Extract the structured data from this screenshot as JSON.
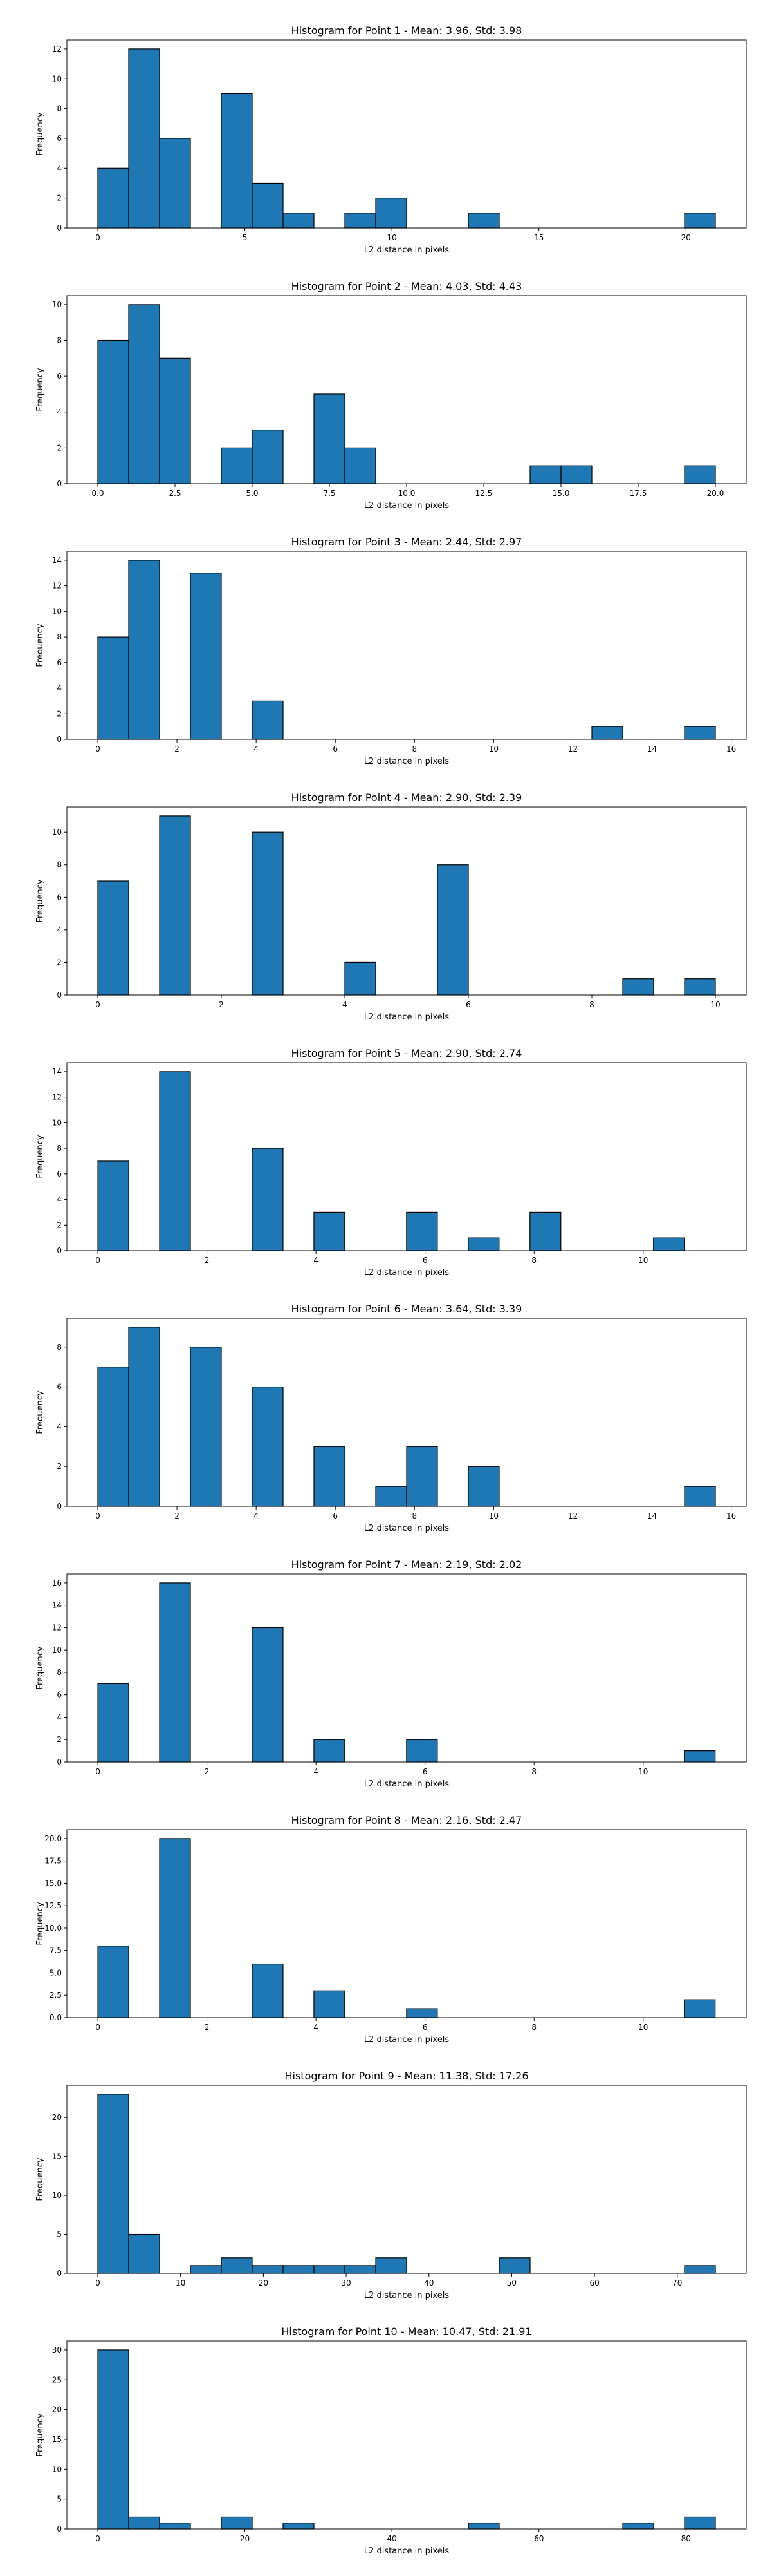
{
  "style": {
    "bar_color": "#1f77b4",
    "edge_color": "#000000",
    "background": "#ffffff"
  },
  "chart_data": [
    {
      "type": "bar",
      "title": "Histogram for Point 1 - Mean: 3.96, Std: 3.98",
      "xlabel": "L2 distance in pixels",
      "ylabel": "Frequency",
      "xlim": [
        -1.05,
        22.05
      ],
      "ylim": [
        0,
        12.6
      ],
      "xticks": [
        0,
        5,
        10,
        15,
        20
      ],
      "xtick_labels": [
        "0",
        "5",
        "10",
        "15",
        "20"
      ],
      "yticks": [
        0,
        2,
        4,
        6,
        8,
        10,
        12
      ],
      "ytick_labels": [
        "0",
        "2",
        "4",
        "6",
        "8",
        "10",
        "12"
      ],
      "bin_edges": [
        0,
        1.05,
        2.1,
        3.15,
        4.2,
        5.25,
        6.3,
        7.35,
        8.4,
        9.45,
        10.5,
        11.55,
        12.6,
        13.65,
        14.7,
        15.75,
        16.8,
        17.85,
        18.9,
        19.95,
        21
      ],
      "values": [
        4,
        12,
        6,
        0,
        9,
        3,
        1,
        0,
        1,
        2,
        0,
        0,
        1,
        0,
        0,
        0,
        0,
        0,
        0,
        1
      ],
      "grid": false
    },
    {
      "type": "bar",
      "title": "Histogram for Point 2 - Mean: 4.03, Std: 4.43",
      "xlabel": "L2 distance in pixels",
      "ylabel": "Frequency",
      "xlim": [
        -1.0,
        21.0
      ],
      "ylim": [
        0,
        10.5
      ],
      "xticks": [
        0,
        2.5,
        5,
        7.5,
        10,
        12.5,
        15,
        17.5,
        20
      ],
      "xtick_labels": [
        "0.0",
        "2.5",
        "5.0",
        "7.5",
        "10.0",
        "12.5",
        "15.0",
        "17.5",
        "20.0"
      ],
      "yticks": [
        0,
        2,
        4,
        6,
        8,
        10
      ],
      "ytick_labels": [
        "0",
        "2",
        "4",
        "6",
        "8",
        "10"
      ],
      "bin_edges": [
        0,
        1,
        2,
        3,
        4,
        5,
        6,
        7,
        8,
        9,
        10,
        11,
        12,
        13,
        14,
        15,
        16,
        17,
        18,
        19,
        20
      ],
      "values": [
        8,
        10,
        7,
        0,
        2,
        3,
        0,
        5,
        2,
        0,
        0,
        0,
        0,
        0,
        1,
        1,
        0,
        0,
        0,
        1
      ],
      "grid": false
    },
    {
      "type": "bar",
      "title": "Histogram for Point 3 - Mean: 2.44, Std: 2.97",
      "xlabel": "L2 distance in pixels",
      "ylabel": "Frequency",
      "xlim": [
        -0.78,
        16.38
      ],
      "ylim": [
        0,
        14.7
      ],
      "xticks": [
        0,
        2,
        4,
        6,
        8,
        10,
        12,
        14,
        16
      ],
      "xtick_labels": [
        "0",
        "2",
        "4",
        "6",
        "8",
        "10",
        "12",
        "14",
        "16"
      ],
      "yticks": [
        0,
        2,
        4,
        6,
        8,
        10,
        12,
        14
      ],
      "ytick_labels": [
        "0",
        "2",
        "4",
        "6",
        "8",
        "10",
        "12",
        "14"
      ],
      "bin_edges": [
        0,
        0.78,
        1.56,
        2.34,
        3.12,
        3.9,
        4.68,
        5.46,
        6.24,
        7.02,
        7.8,
        8.58,
        9.36,
        10.14,
        10.92,
        11.7,
        12.48,
        13.26,
        14.04,
        14.82,
        15.6
      ],
      "values": [
        8,
        14,
        0,
        13,
        0,
        3,
        0,
        0,
        0,
        0,
        0,
        0,
        0,
        0,
        0,
        0,
        1,
        0,
        0,
        1
      ],
      "grid": false
    },
    {
      "type": "bar",
      "title": "Histogram for Point 4 - Mean: 2.90, Std: 2.39",
      "xlabel": "L2 distance in pixels",
      "ylabel": "Frequency",
      "xlim": [
        -0.5,
        10.5
      ],
      "ylim": [
        0,
        11.55
      ],
      "xticks": [
        0,
        2,
        4,
        6,
        8,
        10
      ],
      "xtick_labels": [
        "0",
        "2",
        "4",
        "6",
        "8",
        "10"
      ],
      "yticks": [
        0,
        2,
        4,
        6,
        8,
        10
      ],
      "ytick_labels": [
        "0",
        "2",
        "4",
        "6",
        "8",
        "10"
      ],
      "bin_edges": [
        0,
        0.5,
        1,
        1.5,
        2,
        2.5,
        3,
        3.5,
        4,
        4.5,
        5,
        5.5,
        6,
        6.5,
        7,
        7.5,
        8,
        8.5,
        9,
        9.5,
        10
      ],
      "values": [
        7,
        0,
        11,
        0,
        0,
        10,
        0,
        0,
        2,
        0,
        0,
        8,
        0,
        0,
        0,
        0,
        0,
        1,
        0,
        1
      ],
      "grid": false
    },
    {
      "type": "bar",
      "title": "Histogram for Point 5 - Mean: 2.90, Std: 2.74",
      "xlabel": "L2 distance in pixels",
      "ylabel": "Frequency",
      "xlim": [
        -0.567,
        11.89
      ],
      "ylim": [
        0,
        14.7
      ],
      "xticks": [
        0,
        2,
        4,
        6,
        8,
        10
      ],
      "xtick_labels": [
        "0",
        "2",
        "4",
        "6",
        "8",
        "10"
      ],
      "yticks": [
        0,
        2,
        4,
        6,
        8,
        10,
        12,
        14
      ],
      "ytick_labels": [
        "0",
        "2",
        "4",
        "6",
        "8",
        "10",
        "12",
        "14"
      ],
      "bin_edges": [
        0,
        0.566,
        1.132,
        1.698,
        2.264,
        2.83,
        3.396,
        3.962,
        4.528,
        5.094,
        5.66,
        6.226,
        6.792,
        7.358,
        7.924,
        8.49,
        9.056,
        9.622,
        10.188,
        10.754,
        11.32
      ],
      "values": [
        7,
        0,
        14,
        0,
        0,
        8,
        0,
        3,
        0,
        0,
        3,
        0,
        1,
        0,
        3,
        0,
        0,
        0,
        1,
        0
      ],
      "grid": false
    },
    {
      "type": "bar",
      "title": "Histogram for Point 6 - Mean: 3.64, Std: 3.39",
      "xlabel": "L2 distance in pixels",
      "ylabel": "Frequency",
      "xlim": [
        -0.78,
        16.38
      ],
      "ylim": [
        0,
        9.45
      ],
      "xticks": [
        0,
        2,
        4,
        6,
        8,
        10,
        12,
        14,
        16
      ],
      "xtick_labels": [
        "0",
        "2",
        "4",
        "6",
        "8",
        "10",
        "12",
        "14",
        "16"
      ],
      "yticks": [
        0,
        2,
        4,
        6,
        8
      ],
      "ytick_labels": [
        "0",
        "2",
        "4",
        "6",
        "8"
      ],
      "bin_edges": [
        0,
        0.78,
        1.56,
        2.34,
        3.12,
        3.9,
        4.68,
        5.46,
        6.24,
        7.02,
        7.8,
        8.58,
        9.36,
        10.14,
        10.92,
        11.7,
        12.48,
        13.26,
        14.04,
        14.82,
        15.6
      ],
      "values": [
        7,
        9,
        0,
        8,
        0,
        6,
        0,
        3,
        0,
        1,
        3,
        0,
        2,
        0,
        0,
        0,
        0,
        0,
        0,
        1
      ],
      "grid": false
    },
    {
      "type": "bar",
      "title": "Histogram for Point 7 - Mean: 2.19, Std: 2.02",
      "xlabel": "L2 distance in pixels",
      "ylabel": "Frequency",
      "xlim": [
        -0.567,
        11.89
      ],
      "ylim": [
        0,
        16.8
      ],
      "xticks": [
        0,
        2,
        4,
        6,
        8,
        10
      ],
      "xtick_labels": [
        "0",
        "2",
        "4",
        "6",
        "8",
        "10"
      ],
      "yticks": [
        0,
        2,
        4,
        6,
        8,
        10,
        12,
        14,
        16
      ],
      "ytick_labels": [
        "0",
        "2",
        "4",
        "6",
        "8",
        "10",
        "12",
        "14",
        "16"
      ],
      "bin_edges": [
        0,
        0.566,
        1.132,
        1.698,
        2.264,
        2.83,
        3.396,
        3.962,
        4.528,
        5.094,
        5.66,
        6.226,
        6.792,
        7.358,
        7.924,
        8.49,
        9.056,
        9.622,
        10.188,
        10.754,
        11.32
      ],
      "values": [
        7,
        0,
        16,
        0,
        0,
        12,
        0,
        2,
        0,
        0,
        2,
        0,
        0,
        0,
        0,
        0,
        0,
        0,
        0,
        1
      ],
      "grid": false
    },
    {
      "type": "bar",
      "title": "Histogram for Point 8 - Mean: 2.16, Std: 2.47",
      "xlabel": "L2 distance in pixels",
      "ylabel": "Frequency",
      "xlim": [
        -0.567,
        11.89
      ],
      "ylim": [
        0,
        21.0
      ],
      "xticks": [
        0,
        2,
        4,
        6,
        8,
        10
      ],
      "xtick_labels": [
        "0",
        "2",
        "4",
        "6",
        "8",
        "10"
      ],
      "yticks": [
        0,
        2.5,
        5,
        7.5,
        10,
        12.5,
        15,
        17.5,
        20
      ],
      "ytick_labels": [
        "0.0",
        "2.5",
        "5.0",
        "7.5",
        "10.0",
        "12.5",
        "15.0",
        "17.5",
        "20.0"
      ],
      "bin_edges": [
        0,
        0.566,
        1.132,
        1.698,
        2.264,
        2.83,
        3.396,
        3.962,
        4.528,
        5.094,
        5.66,
        6.226,
        6.792,
        7.358,
        7.924,
        8.49,
        9.056,
        9.622,
        10.188,
        10.754,
        11.32
      ],
      "values": [
        8,
        0,
        20,
        0,
        0,
        6,
        0,
        3,
        0,
        0,
        1,
        0,
        0,
        0,
        0,
        0,
        0,
        0,
        0,
        2
      ],
      "grid": false
    },
    {
      "type": "bar",
      "title": "Histogram for Point 9 - Mean: 11.38, Std: 17.26",
      "xlabel": "L2 distance in pixels",
      "ylabel": "Frequency",
      "xlim": [
        -3.73,
        78.33
      ],
      "ylim": [
        0,
        24.15
      ],
      "xticks": [
        0,
        10,
        20,
        30,
        40,
        50,
        60,
        70
      ],
      "xtick_labels": [
        "0",
        "10",
        "20",
        "30",
        "40",
        "50",
        "60",
        "70"
      ],
      "yticks": [
        0,
        5,
        10,
        15,
        20
      ],
      "ytick_labels": [
        "0",
        "5",
        "10",
        "15",
        "20"
      ],
      "bin_edges": [
        0,
        3.73,
        7.46,
        11.19,
        14.92,
        18.65,
        22.38,
        26.11,
        29.84,
        33.57,
        37.3,
        41.03,
        44.76,
        48.49,
        52.22,
        55.95,
        59.68,
        63.41,
        67.14,
        70.87,
        74.6
      ],
      "values": [
        23,
        5,
        0,
        1,
        2,
        1,
        1,
        1,
        1,
        2,
        0,
        0,
        0,
        2,
        0,
        0,
        0,
        0,
        0,
        1
      ],
      "grid": false
    },
    {
      "type": "bar",
      "title": "Histogram for Point 10 - Mean: 10.47, Std: 21.91",
      "xlabel": "L2 distance in pixels",
      "ylabel": "Frequency",
      "xlim": [
        -4.2,
        88.2
      ],
      "ylim": [
        0,
        31.5
      ],
      "xticks": [
        0,
        20,
        40,
        60,
        80
      ],
      "xtick_labels": [
        "0",
        "20",
        "40",
        "60",
        "80"
      ],
      "yticks": [
        0,
        5,
        10,
        15,
        20,
        25,
        30
      ],
      "ytick_labels": [
        "0",
        "5",
        "10",
        "15",
        "20",
        "25",
        "30"
      ],
      "bin_edges": [
        0,
        4.2,
        8.4,
        12.6,
        16.8,
        21,
        25.2,
        29.4,
        33.6,
        37.8,
        42,
        46.2,
        50.4,
        54.6,
        58.8,
        63,
        67.2,
        71.4,
        75.6,
        79.8,
        84
      ],
      "values": [
        30,
        2,
        1,
        0,
        2,
        0,
        1,
        0,
        0,
        0,
        0,
        0,
        1,
        0,
        0,
        0,
        0,
        1,
        0,
        2
      ],
      "grid": false
    }
  ]
}
